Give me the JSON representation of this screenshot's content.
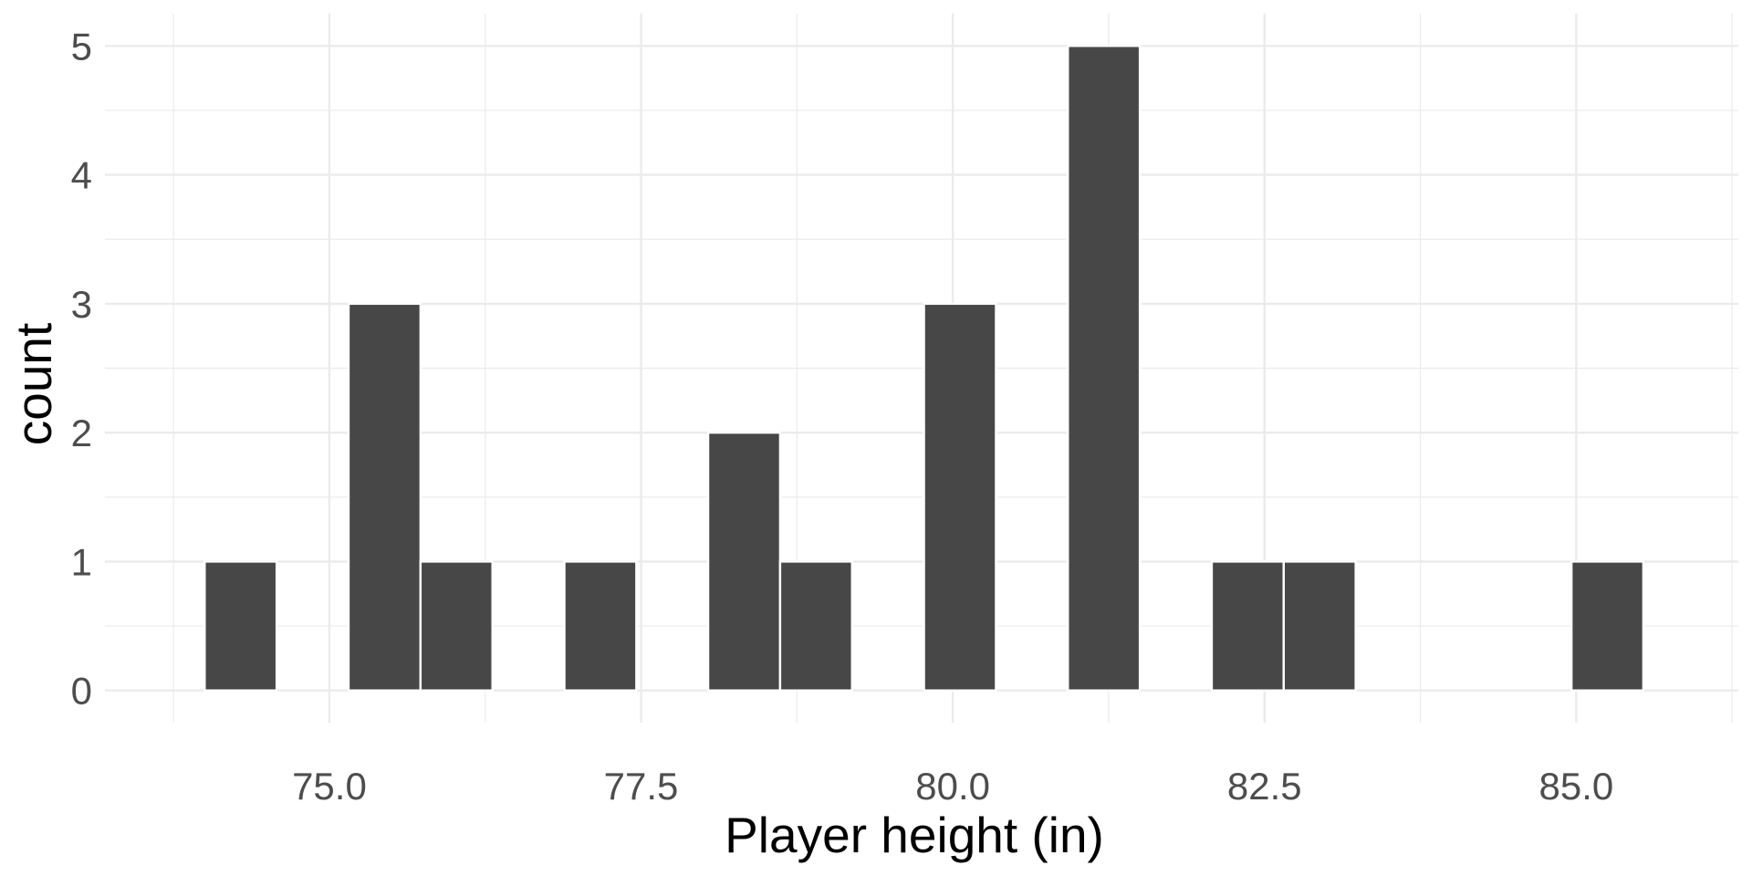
{
  "chart_data": {
    "type": "bar",
    "xlabel": "Player height (in)",
    "ylabel": "count",
    "bins": [
      {
        "x0": 74.0,
        "x1": 74.577,
        "count": 1
      },
      {
        "x0": 74.577,
        "x1": 75.154,
        "count": 0
      },
      {
        "x0": 75.154,
        "x1": 75.731,
        "count": 3
      },
      {
        "x0": 75.731,
        "x1": 76.308,
        "count": 1
      },
      {
        "x0": 76.308,
        "x1": 76.885,
        "count": 0
      },
      {
        "x0": 76.885,
        "x1": 77.462,
        "count": 1
      },
      {
        "x0": 77.462,
        "x1": 78.038,
        "count": 0
      },
      {
        "x0": 78.038,
        "x1": 78.615,
        "count": 2
      },
      {
        "x0": 78.615,
        "x1": 79.192,
        "count": 1
      },
      {
        "x0": 79.192,
        "x1": 79.769,
        "count": 0
      },
      {
        "x0": 79.769,
        "x1": 80.346,
        "count": 3
      },
      {
        "x0": 80.346,
        "x1": 80.923,
        "count": 0
      },
      {
        "x0": 80.923,
        "x1": 81.5,
        "count": 5
      },
      {
        "x0": 81.5,
        "x1": 82.077,
        "count": 0
      },
      {
        "x0": 82.077,
        "x1": 82.654,
        "count": 1
      },
      {
        "x0": 82.654,
        "x1": 83.231,
        "count": 1
      },
      {
        "x0": 83.231,
        "x1": 83.808,
        "count": 0
      },
      {
        "x0": 83.808,
        "x1": 84.385,
        "count": 0
      },
      {
        "x0": 84.385,
        "x1": 84.962,
        "count": 0
      },
      {
        "x0": 84.962,
        "x1": 85.538,
        "count": 1
      }
    ],
    "xlim": [
      73.2,
      86.3
    ],
    "ylim": [
      -0.25,
      5.25
    ],
    "x_ticks": [
      75.0,
      77.5,
      80.0,
      82.5,
      85.0
    ],
    "x_tick_labels": [
      "75.0",
      "77.5",
      "80.0",
      "82.5",
      "85.0"
    ],
    "y_ticks": [
      0,
      1,
      2,
      3,
      4,
      5
    ],
    "y_tick_labels": [
      "0",
      "1",
      "2",
      "3",
      "4",
      "5"
    ],
    "grid": true,
    "bar_color": "#474747",
    "grid_color": "#ebebeb",
    "tick_label_color": "#4d4d4d"
  }
}
